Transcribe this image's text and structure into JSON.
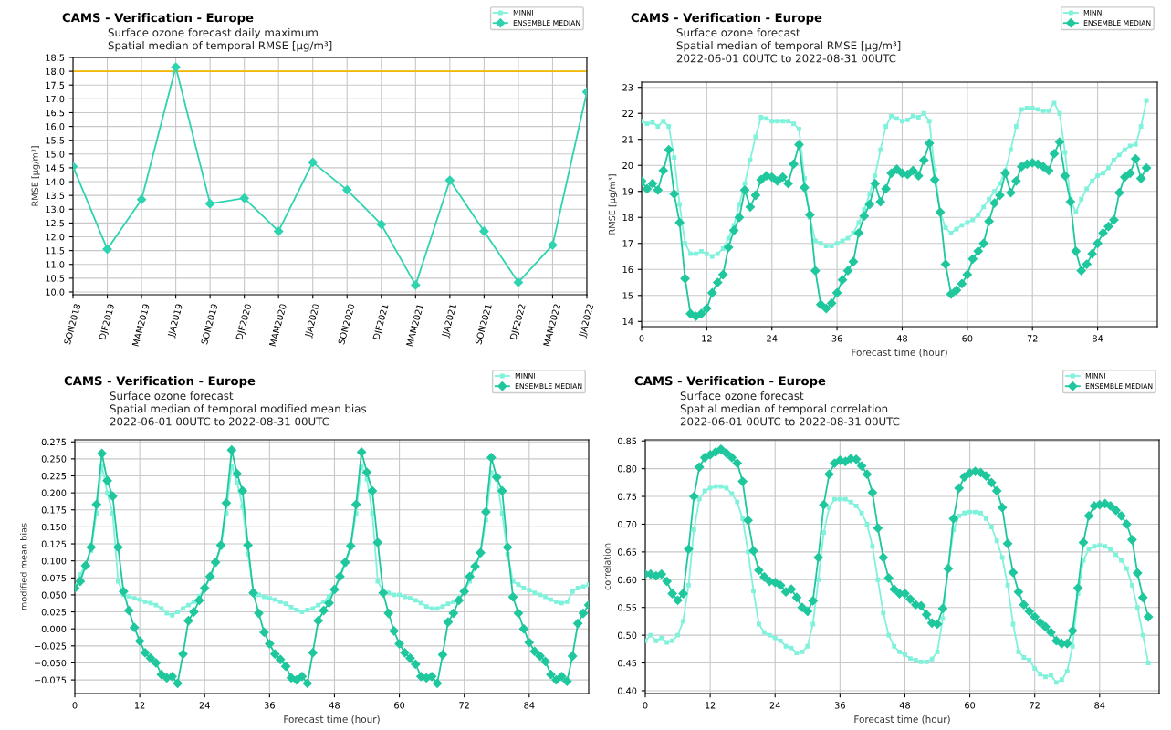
{
  "chart_data": [
    {
      "type": "line",
      "title": "CAMS - Verification - Europe",
      "subtitle": "Surface ozone forecast daily maximum\nSpatial median of temporal RMSE [μg/m³]",
      "ylabel": "RMSE [μg/m³]",
      "categories": [
        "SON2018",
        "DJF2019",
        "MAM2019",
        "JJA2019",
        "SON2019",
        "DJF2020",
        "MAM2020",
        "JJA2020",
        "SON2020",
        "DJF2021",
        "MAM2021",
        "JJA2021",
        "SON2021",
        "DJF2022",
        "MAM2022",
        "JJA2022"
      ],
      "series": [
        {
          "name": "MINNI",
          "color": "#80f2dc",
          "marker": "square",
          "values": [
            null,
            null,
            null,
            null,
            null,
            null,
            null,
            null,
            null,
            null,
            null,
            null,
            null,
            null,
            null,
            null
          ]
        },
        {
          "name": "ENSEMBLE MEDIAN",
          "color": "#2ed3b0",
          "marker": "diamond",
          "values": [
            14.55,
            11.55,
            13.35,
            18.15,
            13.2,
            13.4,
            12.2,
            14.7,
            13.7,
            12.45,
            10.25,
            14.05,
            12.2,
            10.35,
            11.7,
            17.25
          ]
        }
      ],
      "ref_lines": [
        {
          "axis": "y",
          "value": 18.0,
          "color": "#f5b800"
        }
      ],
      "ylim": [
        9.9,
        18.5
      ],
      "yticks": [
        {
          "value": 10.0,
          "label": "10.0"
        },
        {
          "value": 10.5,
          "label": "10.5"
        },
        {
          "value": 11.0,
          "label": "11.0"
        },
        {
          "value": 11.5,
          "label": "11.5"
        },
        {
          "value": 12.0,
          "label": "12.0"
        },
        {
          "value": 12.5,
          "label": "12.5"
        },
        {
          "value": 13.0,
          "label": "13.0"
        },
        {
          "value": 13.5,
          "label": "13.5"
        },
        {
          "value": 14.0,
          "label": "14.0"
        },
        {
          "value": 14.5,
          "label": "14.5"
        },
        {
          "value": 15.0,
          "label": "15.0"
        },
        {
          "value": 15.5,
          "label": "15.5"
        },
        {
          "value": 16.0,
          "label": "16.0"
        },
        {
          "value": 16.5,
          "label": "16.5"
        },
        {
          "value": 17.0,
          "label": "17.0"
        },
        {
          "value": 17.5,
          "label": "17.5"
        },
        {
          "value": 18.0,
          "label": "18.0"
        },
        {
          "value": 18.5,
          "label": "18.5"
        }
      ],
      "grid": true,
      "legend": "top right",
      "line_style": "solid"
    },
    {
      "type": "line",
      "title": "CAMS - Verification - Europe",
      "subtitle": "Surface ozone forecast\nSpatial median of temporal RMSE [μg/m³]\n2022-06-01 00UTC to 2022-08-31 00UTC",
      "xlabel": "Forecast time (hour)",
      "ylabel": "RMSE [μg/m³]",
      "x": [
        0,
        1,
        2,
        3,
        4,
        5,
        6,
        7,
        8,
        9,
        10,
        11,
        12,
        13,
        14,
        15,
        16,
        17,
        18,
        19,
        20,
        21,
        22,
        23,
        24,
        25,
        26,
        27,
        28,
        29,
        30,
        31,
        32,
        33,
        34,
        35,
        36,
        37,
        38,
        39,
        40,
        41,
        42,
        43,
        44,
        45,
        46,
        47,
        48,
        49,
        50,
        51,
        52,
        53,
        54,
        55,
        56,
        57,
        58,
        59,
        60,
        61,
        62,
        63,
        64,
        65,
        66,
        67,
        68,
        69,
        70,
        71,
        72,
        73,
        74,
        75,
        76,
        77,
        78,
        79,
        80,
        81,
        82,
        83,
        84,
        85,
        86,
        87,
        88,
        89,
        90,
        91,
        92,
        93
      ],
      "series": [
        {
          "name": "MINNI",
          "color": "#80f2dc",
          "marker": "square",
          "values": [
            21.7,
            21.6,
            21.65,
            21.5,
            21.7,
            21.5,
            20.3,
            18.5,
            17.0,
            16.6,
            16.6,
            16.7,
            16.6,
            16.5,
            16.6,
            16.8,
            17.2,
            17.7,
            18.5,
            19.3,
            20.2,
            21.1,
            21.85,
            21.8,
            21.7,
            21.7,
            21.7,
            21.7,
            21.6,
            21.4,
            19.5,
            18.0,
            17.1,
            17.0,
            16.9,
            16.9,
            17.0,
            17.1,
            17.2,
            17.4,
            17.8,
            18.3,
            18.9,
            19.6,
            20.6,
            21.5,
            21.9,
            21.8,
            21.7,
            21.75,
            21.9,
            21.85,
            22.0,
            21.7,
            19.8,
            18.2,
            17.6,
            17.4,
            17.55,
            17.7,
            17.8,
            17.9,
            18.1,
            18.4,
            18.7,
            19.0,
            19.3,
            19.8,
            20.6,
            21.5,
            22.15,
            22.2,
            22.2,
            22.15,
            22.1,
            22.1,
            22.4,
            22.0,
            20.5,
            18.7,
            18.2,
            18.7,
            19.1,
            19.4,
            19.6,
            19.7,
            19.9,
            20.2,
            20.4,
            20.6,
            20.75,
            20.8,
            21.5,
            22.5
          ]
        },
        {
          "name": "ENSEMBLE MEDIAN",
          "color": "#1fc79d",
          "marker": "diamond",
          "values": [
            19.4,
            19.1,
            19.3,
            19.05,
            19.8,
            20.6,
            18.9,
            17.8,
            15.65,
            14.3,
            14.2,
            14.3,
            14.5,
            15.1,
            15.5,
            15.8,
            16.85,
            17.5,
            18.0,
            19.05,
            18.4,
            18.85,
            19.45,
            19.6,
            19.55,
            19.4,
            19.55,
            19.3,
            20.05,
            20.8,
            19.15,
            18.1,
            15.95,
            14.65,
            14.5,
            14.7,
            15.1,
            15.6,
            15.95,
            16.3,
            17.4,
            18.05,
            18.5,
            19.3,
            18.6,
            19.1,
            19.7,
            19.85,
            19.7,
            19.65,
            19.8,
            19.6,
            20.2,
            20.85,
            19.45,
            18.2,
            16.2,
            15.05,
            15.2,
            15.45,
            15.8,
            16.4,
            16.7,
            17.0,
            17.85,
            18.55,
            18.85,
            19.7,
            18.95,
            19.4,
            19.95,
            20.05,
            20.1,
            20.05,
            19.95,
            19.8,
            20.45,
            20.9,
            19.6,
            18.6,
            16.7,
            15.95,
            16.2,
            16.6,
            17.0,
            17.4,
            17.65,
            17.9,
            18.95,
            19.55,
            19.7,
            20.25,
            19.5,
            19.9
          ]
        }
      ],
      "xlim": [
        0,
        95
      ],
      "xticks": [
        0,
        12,
        24,
        36,
        48,
        60,
        72,
        84
      ],
      "ylim": [
        13.8,
        23.2
      ],
      "yticks": [
        14,
        15,
        16,
        17,
        18,
        19,
        20,
        21,
        22,
        23
      ],
      "grid": true,
      "legend": "top right",
      "line_style": "solid"
    },
    {
      "type": "line",
      "title": "CAMS - Verification - Europe",
      "subtitle": "Surface ozone forecast\nSpatial median of temporal modified mean bias\n2022-06-01 00UTC to 2022-08-31 00UTC",
      "xlabel": "Forecast time (hour)",
      "ylabel": "modified mean bias",
      "x": [
        0,
        1,
        2,
        3,
        4,
        5,
        6,
        7,
        8,
        9,
        10,
        11,
        12,
        13,
        14,
        15,
        16,
        17,
        18,
        19,
        20,
        21,
        22,
        23,
        24,
        25,
        26,
        27,
        28,
        29,
        30,
        31,
        32,
        33,
        34,
        35,
        36,
        37,
        38,
        39,
        40,
        41,
        42,
        43,
        44,
        45,
        46,
        47,
        48,
        49,
        50,
        51,
        52,
        53,
        54,
        55,
        56,
        57,
        58,
        59,
        60,
        61,
        62,
        63,
        64,
        65,
        66,
        67,
        68,
        69,
        70,
        71,
        72,
        73,
        74,
        75,
        76,
        77,
        78,
        79,
        80,
        81,
        82,
        83,
        84,
        85,
        86,
        87,
        88,
        89,
        90,
        91,
        92,
        93,
        94,
        95
      ],
      "series": [
        {
          "name": "MINNI",
          "color": "#80f2dc",
          "marker": "square",
          "values": [
            0.06,
            0.08,
            0.095,
            0.115,
            0.17,
            0.24,
            0.2,
            0.17,
            0.07,
            0.05,
            0.048,
            0.045,
            0.043,
            0.04,
            0.038,
            0.035,
            0.03,
            0.023,
            0.02,
            0.025,
            0.03,
            0.035,
            0.04,
            0.048,
            0.06,
            0.075,
            0.095,
            0.12,
            0.17,
            0.24,
            0.215,
            0.18,
            0.11,
            0.055,
            0.05,
            0.047,
            0.045,
            0.043,
            0.04,
            0.037,
            0.032,
            0.028,
            0.025,
            0.028,
            0.03,
            0.035,
            0.04,
            0.048,
            0.058,
            0.075,
            0.095,
            0.12,
            0.17,
            0.24,
            0.22,
            0.17,
            0.07,
            0.055,
            0.053,
            0.05,
            0.05,
            0.047,
            0.045,
            0.042,
            0.038,
            0.033,
            0.03,
            0.03,
            0.033,
            0.037,
            0.04,
            0.045,
            0.055,
            0.07,
            0.09,
            0.11,
            0.16,
            0.23,
            0.22,
            0.17,
            0.11,
            0.07,
            0.065,
            0.06,
            0.057,
            0.053,
            0.05,
            0.047,
            0.043,
            0.04,
            0.038,
            0.04,
            0.055,
            0.06,
            0.062,
            0.065
          ]
        },
        {
          "name": "ENSEMBLE MEDIAN",
          "color": "#1fc79d",
          "marker": "diamond",
          "values": [
            0.06,
            0.07,
            0.093,
            0.12,
            0.183,
            0.258,
            0.218,
            0.195,
            0.12,
            0.055,
            0.027,
            0.002,
            -0.018,
            -0.035,
            -0.043,
            -0.05,
            -0.067,
            -0.072,
            -0.07,
            -0.08,
            -0.037,
            0.012,
            0.025,
            0.042,
            0.06,
            0.077,
            0.098,
            0.123,
            0.185,
            0.263,
            0.228,
            0.203,
            0.123,
            0.053,
            0.023,
            -0.005,
            -0.022,
            -0.037,
            -0.045,
            -0.055,
            -0.072,
            -0.075,
            -0.07,
            -0.08,
            -0.035,
            0.012,
            0.027,
            0.038,
            0.058,
            0.077,
            0.098,
            0.122,
            0.183,
            0.26,
            0.23,
            0.203,
            0.127,
            0.053,
            0.023,
            -0.003,
            -0.022,
            -0.035,
            -0.043,
            -0.052,
            -0.07,
            -0.072,
            -0.07,
            -0.08,
            -0.038,
            0.01,
            0.023,
            0.042,
            0.055,
            0.077,
            0.092,
            0.112,
            0.172,
            0.252,
            0.223,
            0.203,
            0.12,
            0.047,
            0.023,
            0.0,
            -0.02,
            -0.033,
            -0.04,
            -0.048,
            -0.067,
            -0.075,
            -0.07,
            -0.077,
            -0.04,
            0.008,
            0.023,
            0.035
          ]
        }
      ],
      "xlim": [
        0,
        95
      ],
      "xticks": [
        0,
        12,
        24,
        36,
        48,
        60,
        72,
        84
      ],
      "ylim": [
        -0.095,
        0.278
      ],
      "yticks": [
        {
          "value": -0.075,
          "label": "−0.075"
        },
        {
          "value": -0.05,
          "label": "−0.050"
        },
        {
          "value": -0.025,
          "label": "−0.025"
        },
        {
          "value": 0.0,
          "label": "0.000"
        },
        {
          "value": 0.025,
          "label": "0.025"
        },
        {
          "value": 0.05,
          "label": "0.050"
        },
        {
          "value": 0.075,
          "label": "0.075"
        },
        {
          "value": 0.1,
          "label": "0.100"
        },
        {
          "value": 0.125,
          "label": "0.125"
        },
        {
          "value": 0.15,
          "label": "0.150"
        },
        {
          "value": 0.175,
          "label": "0.175"
        },
        {
          "value": 0.2,
          "label": "0.200"
        },
        {
          "value": 0.225,
          "label": "0.225"
        },
        {
          "value": 0.25,
          "label": "0.250"
        },
        {
          "value": 0.275,
          "label": "0.275"
        }
      ],
      "grid": true,
      "legend": "top right",
      "line_style": "solid"
    },
    {
      "type": "line",
      "title": "CAMS - Verification - Europe",
      "subtitle": "Surface ozone forecast\nSpatial median of temporal correlation\n2022-06-01 00UTC to 2022-08-31 00UTC",
      "xlabel": "Forecast time (hour)",
      "ylabel": "correlation",
      "x": [
        0,
        1,
        2,
        3,
        4,
        5,
        6,
        7,
        8,
        9,
        10,
        11,
        12,
        13,
        14,
        15,
        16,
        17,
        18,
        19,
        20,
        21,
        22,
        23,
        24,
        25,
        26,
        27,
        28,
        29,
        30,
        31,
        32,
        33,
        34,
        35,
        36,
        37,
        38,
        39,
        40,
        41,
        42,
        43,
        44,
        45,
        46,
        47,
        48,
        49,
        50,
        51,
        52,
        53,
        54,
        55,
        56,
        57,
        58,
        59,
        60,
        61,
        62,
        63,
        64,
        65,
        66,
        67,
        68,
        69,
        70,
        71,
        72,
        73,
        74,
        75,
        76,
        77,
        78,
        79,
        80,
        81,
        82,
        83,
        84,
        85,
        86,
        87,
        88,
        89,
        90,
        91,
        92,
        93
      ],
      "series": [
        {
          "name": "MINNI",
          "color": "#80f2dc",
          "marker": "square",
          "values": [
            0.49,
            0.5,
            0.49,
            0.495,
            0.487,
            0.49,
            0.5,
            0.525,
            0.59,
            0.69,
            0.745,
            0.76,
            0.765,
            0.768,
            0.768,
            0.765,
            0.755,
            0.74,
            0.71,
            0.65,
            0.58,
            0.52,
            0.505,
            0.5,
            0.495,
            0.49,
            0.48,
            0.477,
            0.468,
            0.47,
            0.48,
            0.52,
            0.6,
            0.685,
            0.73,
            0.745,
            0.745,
            0.745,
            0.74,
            0.733,
            0.72,
            0.7,
            0.66,
            0.6,
            0.54,
            0.5,
            0.48,
            0.47,
            0.465,
            0.458,
            0.455,
            0.452,
            0.452,
            0.457,
            0.47,
            0.53,
            0.62,
            0.69,
            0.715,
            0.72,
            0.722,
            0.722,
            0.72,
            0.71,
            0.695,
            0.67,
            0.64,
            0.59,
            0.52,
            0.47,
            0.46,
            0.455,
            0.44,
            0.43,
            0.425,
            0.428,
            0.415,
            0.42,
            0.435,
            0.48,
            0.575,
            0.635,
            0.655,
            0.66,
            0.662,
            0.66,
            0.655,
            0.645,
            0.635,
            0.62,
            0.59,
            0.55,
            0.5,
            0.45
          ]
        },
        {
          "name": "ENSEMBLE MEDIAN",
          "color": "#1fc79d",
          "marker": "diamond",
          "values": [
            0.61,
            0.61,
            0.607,
            0.61,
            0.597,
            0.575,
            0.563,
            0.575,
            0.655,
            0.75,
            0.803,
            0.82,
            0.825,
            0.83,
            0.835,
            0.828,
            0.82,
            0.81,
            0.777,
            0.707,
            0.652,
            0.617,
            0.605,
            0.597,
            0.595,
            0.59,
            0.578,
            0.583,
            0.568,
            0.55,
            0.543,
            0.562,
            0.64,
            0.735,
            0.79,
            0.81,
            0.815,
            0.813,
            0.818,
            0.817,
            0.805,
            0.79,
            0.757,
            0.693,
            0.64,
            0.603,
            0.583,
            0.575,
            0.575,
            0.565,
            0.555,
            0.553,
            0.537,
            0.522,
            0.52,
            0.548,
            0.62,
            0.71,
            0.765,
            0.785,
            0.792,
            0.795,
            0.793,
            0.787,
            0.775,
            0.76,
            0.73,
            0.665,
            0.613,
            0.578,
            0.555,
            0.543,
            0.533,
            0.523,
            0.515,
            0.505,
            0.49,
            0.485,
            0.485,
            0.508,
            0.585,
            0.667,
            0.715,
            0.733,
            0.735,
            0.737,
            0.733,
            0.725,
            0.715,
            0.7,
            0.672,
            0.612,
            0.568,
            0.533
          ]
        }
      ],
      "xlim": [
        0,
        95
      ],
      "xticks": [
        0,
        12,
        24,
        36,
        48,
        60,
        72,
        84
      ],
      "ylim": [
        0.395,
        0.852
      ],
      "yticks": [
        {
          "value": 0.4,
          "label": "0.40"
        },
        {
          "value": 0.45,
          "label": "0.45"
        },
        {
          "value": 0.5,
          "label": "0.50"
        },
        {
          "value": 0.55,
          "label": "0.55"
        },
        {
          "value": 0.6,
          "label": "0.60"
        },
        {
          "value": 0.65,
          "label": "0.65"
        },
        {
          "value": 0.7,
          "label": "0.70"
        },
        {
          "value": 0.75,
          "label": "0.75"
        },
        {
          "value": 0.8,
          "label": "0.80"
        },
        {
          "value": 0.85,
          "label": "0.85"
        }
      ],
      "grid": true,
      "legend": "top right",
      "line_style": "solid"
    }
  ]
}
